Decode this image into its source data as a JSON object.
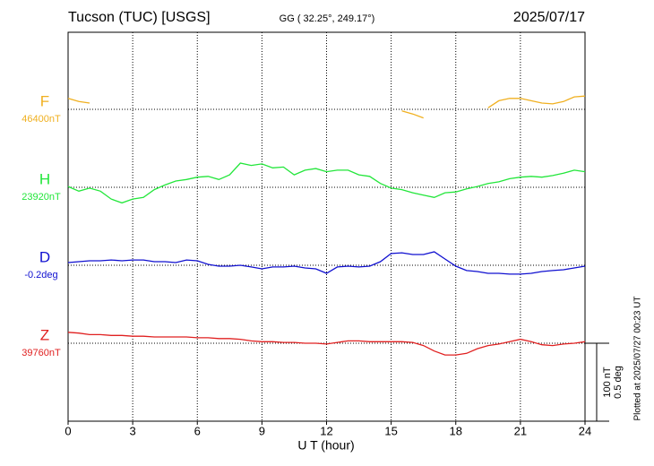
{
  "chart_data": {
    "type": "magnetogram",
    "title": "Tucson (TUC)  [USGS]",
    "subtitle": "GG ( 32.25°, 249.17°)",
    "date": "2025/07/17",
    "plotted": "Plotted at 2025/07/27 00:23 UT",
    "x_label": "U T (hour)",
    "xlim": [
      0,
      24
    ],
    "xticks": [
      0,
      3,
      6,
      9,
      12,
      15,
      18,
      21,
      24
    ],
    "grid": true,
    "scale_bar": {
      "nT": {
        "value": 100,
        "label": "100 nT"
      },
      "deg": {
        "value": 0.5,
        "label": "0.5 deg"
      }
    },
    "x": [
      0,
      0.5,
      1,
      1.5,
      2,
      2.5,
      3,
      3.5,
      4,
      4.5,
      5,
      5.5,
      6,
      6.5,
      7,
      7.5,
      8,
      8.5,
      9,
      9.5,
      10,
      10.5,
      11,
      11.5,
      12,
      12.5,
      13,
      13.5,
      14,
      14.5,
      15,
      15.5,
      16,
      16.5,
      17,
      17.5,
      18,
      18.5,
      19,
      19.5,
      20,
      20.5,
      21,
      21.5,
      22,
      22.5,
      23,
      23.5,
      24
    ],
    "series": [
      {
        "name": "F",
        "color": "#f0b020",
        "unit": "nT",
        "baseline": {
          "value": 46400,
          "label": "46400nT"
        },
        "values": [
          46414,
          46410,
          46408,
          null,
          null,
          null,
          null,
          null,
          null,
          null,
          null,
          null,
          null,
          null,
          null,
          null,
          null,
          null,
          null,
          null,
          null,
          null,
          null,
          null,
          null,
          null,
          null,
          null,
          null,
          null,
          null,
          46398,
          46394,
          46389,
          null,
          null,
          null,
          null,
          null,
          46402,
          46411,
          46414,
          46414,
          46411,
          46408,
          46407,
          46410,
          46416,
          46417
        ]
      },
      {
        "name": "H",
        "color": "#22e63a",
        "unit": "nT",
        "baseline": {
          "value": 23920,
          "label": "23920nT"
        },
        "values": [
          23921,
          23915,
          23919,
          23915,
          23905,
          23900,
          23905,
          23907,
          23917,
          23923,
          23928,
          23930,
          23933,
          23934,
          23930,
          23936,
          23951,
          23948,
          23950,
          23945,
          23946,
          23936,
          23942,
          23944,
          23940,
          23942,
          23942,
          23936,
          23934,
          23925,
          23919,
          23917,
          23913,
          23910,
          23907,
          23913,
          23914,
          23918,
          23921,
          23925,
          23927,
          23931,
          23933,
          23934,
          23933,
          23935,
          23938,
          23942,
          23940
        ]
      },
      {
        "name": "D",
        "color": "#1010d0",
        "unit": "deg",
        "baseline": {
          "value": -0.2,
          "label": "-0.2deg"
        },
        "values": [
          -0.183,
          -0.177,
          -0.171,
          -0.171,
          -0.166,
          -0.171,
          -0.166,
          -0.166,
          -0.177,
          -0.177,
          -0.183,
          -0.166,
          -0.171,
          -0.194,
          -0.206,
          -0.206,
          -0.2,
          -0.211,
          -0.223,
          -0.211,
          -0.211,
          -0.206,
          -0.217,
          -0.223,
          -0.252,
          -0.211,
          -0.206,
          -0.211,
          -0.206,
          -0.177,
          -0.125,
          -0.12,
          -0.131,
          -0.131,
          -0.114,
          -0.16,
          -0.206,
          -0.234,
          -0.24,
          -0.252,
          -0.252,
          -0.257,
          -0.257,
          -0.252,
          -0.24,
          -0.234,
          -0.229,
          -0.217,
          -0.206
        ]
      },
      {
        "name": "Z",
        "color": "#e02020",
        "unit": "nT",
        "baseline": {
          "value": 39760,
          "label": "39760nT"
        },
        "values": [
          39774,
          39773,
          39771,
          39771,
          39770,
          39770,
          39769,
          39769,
          39768,
          39768,
          39768,
          39768,
          39767,
          39767,
          39766,
          39766,
          39765,
          39763,
          39762,
          39762,
          39761,
          39761,
          39760,
          39760,
          39759,
          39761,
          39763,
          39763,
          39762,
          39762,
          39762,
          39762,
          39761,
          39757,
          39750,
          39745,
          39745,
          39747,
          39753,
          39757,
          39759,
          39762,
          39765,
          39762,
          39758,
          39757,
          39759,
          39760,
          39762
        ]
      }
    ]
  }
}
